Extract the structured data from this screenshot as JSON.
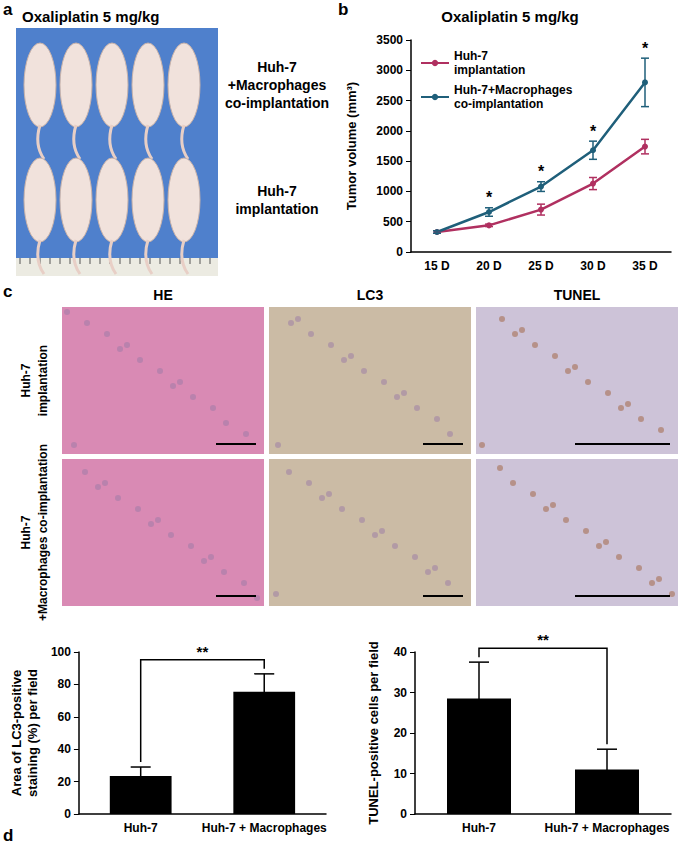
{
  "figure": {
    "panels": [
      "a",
      "b",
      "c",
      "d"
    ]
  },
  "photo": {
    "title": "Oxaliplatin 5 mg/kg",
    "groups": [
      [
        "Huh-7",
        "+Macrophages",
        "co-implantation"
      ],
      [
        "Huh-7",
        "implantation"
      ]
    ]
  },
  "histology": {
    "columns": [
      "HE",
      "LC3",
      "TUNEL"
    ],
    "rows": [
      [
        "Huh-7",
        "implantation"
      ],
      [
        "Huh-7",
        "+Macrophages co-implantation"
      ]
    ]
  },
  "chart_data": [
    {
      "type": "line",
      "title": "Oxaliplatin 5 mg/kg",
      "y_label": "Tumor volume (mm³)",
      "categories": [
        "15 D",
        "20 D",
        "25 D",
        "30 D",
        "35 D"
      ],
      "series": [
        {
          "name": "Huh-7\nimplantation",
          "color": "#b03060",
          "values": [
            330,
            440,
            700,
            1130,
            1740
          ],
          "errors": [
            20,
            20,
            90,
            100,
            120
          ]
        },
        {
          "name": "Huh-7+Macrophages\nco-implantation",
          "color": "#1f5f7a",
          "values": [
            330,
            660,
            1080,
            1680,
            2800
          ],
          "errors": [
            20,
            70,
            80,
            150,
            400
          ]
        }
      ],
      "significance": [
        null,
        "*",
        "*",
        "*",
        "*"
      ],
      "ylim": [
        0,
        3500
      ],
      "yticks": [
        0,
        500,
        1000,
        1500,
        2000,
        2500,
        3000,
        3500
      ],
      "legend": "upper left",
      "marker": "circle",
      "grid": false
    },
    {
      "type": "bar",
      "y_label": "Area of LC3-positive\nstaining (%) per field",
      "categories": [
        "Huh-7",
        "Huh-7 + Macrophages"
      ],
      "values": [
        23.5,
        75.5
      ],
      "errors": [
        5.5,
        11
      ],
      "significance": "**",
      "color": "#000000",
      "ylim": [
        0,
        100
      ],
      "yticks": [
        0,
        20,
        40,
        60,
        80,
        100
      ],
      "grid": false
    },
    {
      "type": "bar",
      "y_label": "TUNEL-positive cells per field",
      "categories": [
        "Huh-7",
        "Huh-7 + Macrophages"
      ],
      "values": [
        28.5,
        11
      ],
      "errors": [
        9,
        5
      ],
      "significance": "**",
      "color": "#000000",
      "ylim": [
        0,
        40
      ],
      "yticks": [
        0,
        10,
        20,
        30,
        40
      ],
      "grid": false
    }
  ]
}
